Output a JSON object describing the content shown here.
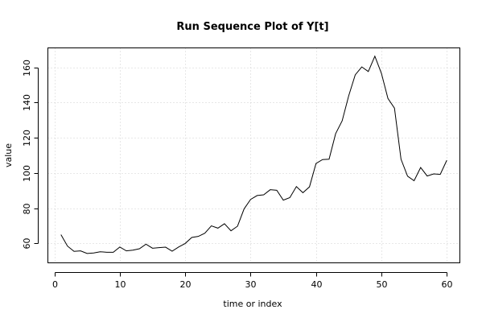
{
  "chart_data": {
    "type": "line",
    "title": "Run Sequence Plot of Y[t]",
    "xlabel": "time or index",
    "ylabel": "value",
    "xlim": [
      -1,
      62
    ],
    "ylim": [
      49,
      171
    ],
    "xticks": [
      0,
      10,
      20,
      30,
      40,
      50,
      60
    ],
    "yticks": [
      60,
      80,
      100,
      120,
      140,
      160
    ],
    "grid": true,
    "series": [
      {
        "x": [
          1,
          2,
          3,
          4,
          5,
          6,
          7,
          8,
          9,
          10,
          11,
          12,
          13,
          14,
          15,
          16,
          17,
          18,
          19,
          20,
          21,
          22,
          23,
          24,
          25,
          26,
          27,
          28,
          29,
          30,
          31,
          32,
          33,
          34,
          35,
          36,
          37,
          38,
          39,
          40,
          41,
          42,
          43,
          44,
          45,
          46,
          47,
          48,
          49,
          50,
          51,
          52,
          53,
          54,
          55,
          56,
          57,
          58,
          59,
          60
        ],
        "values": [
          65.0,
          58.5,
          55.5,
          55.8,
          54.3,
          54.6,
          55.3,
          55.0,
          55.0,
          58.0,
          55.8,
          56.2,
          57.0,
          59.6,
          57.3,
          57.6,
          57.9,
          55.6,
          58.0,
          60.0,
          63.4,
          64.0,
          65.8,
          70.0,
          68.7,
          71.2,
          67.2,
          69.8,
          79.6,
          85.0,
          87.2,
          87.6,
          90.5,
          90.2,
          84.6,
          86.0,
          92.3,
          88.8,
          92.1,
          105.4,
          107.6,
          107.8,
          122.3,
          129.6,
          143.8,
          155.7,
          160.2,
          157.6,
          166.3,
          156.6,
          142.3,
          136.8,
          107.8,
          98.2,
          95.6,
          103.1,
          98.3,
          99.5,
          99.2,
          107.2
        ]
      }
    ]
  }
}
